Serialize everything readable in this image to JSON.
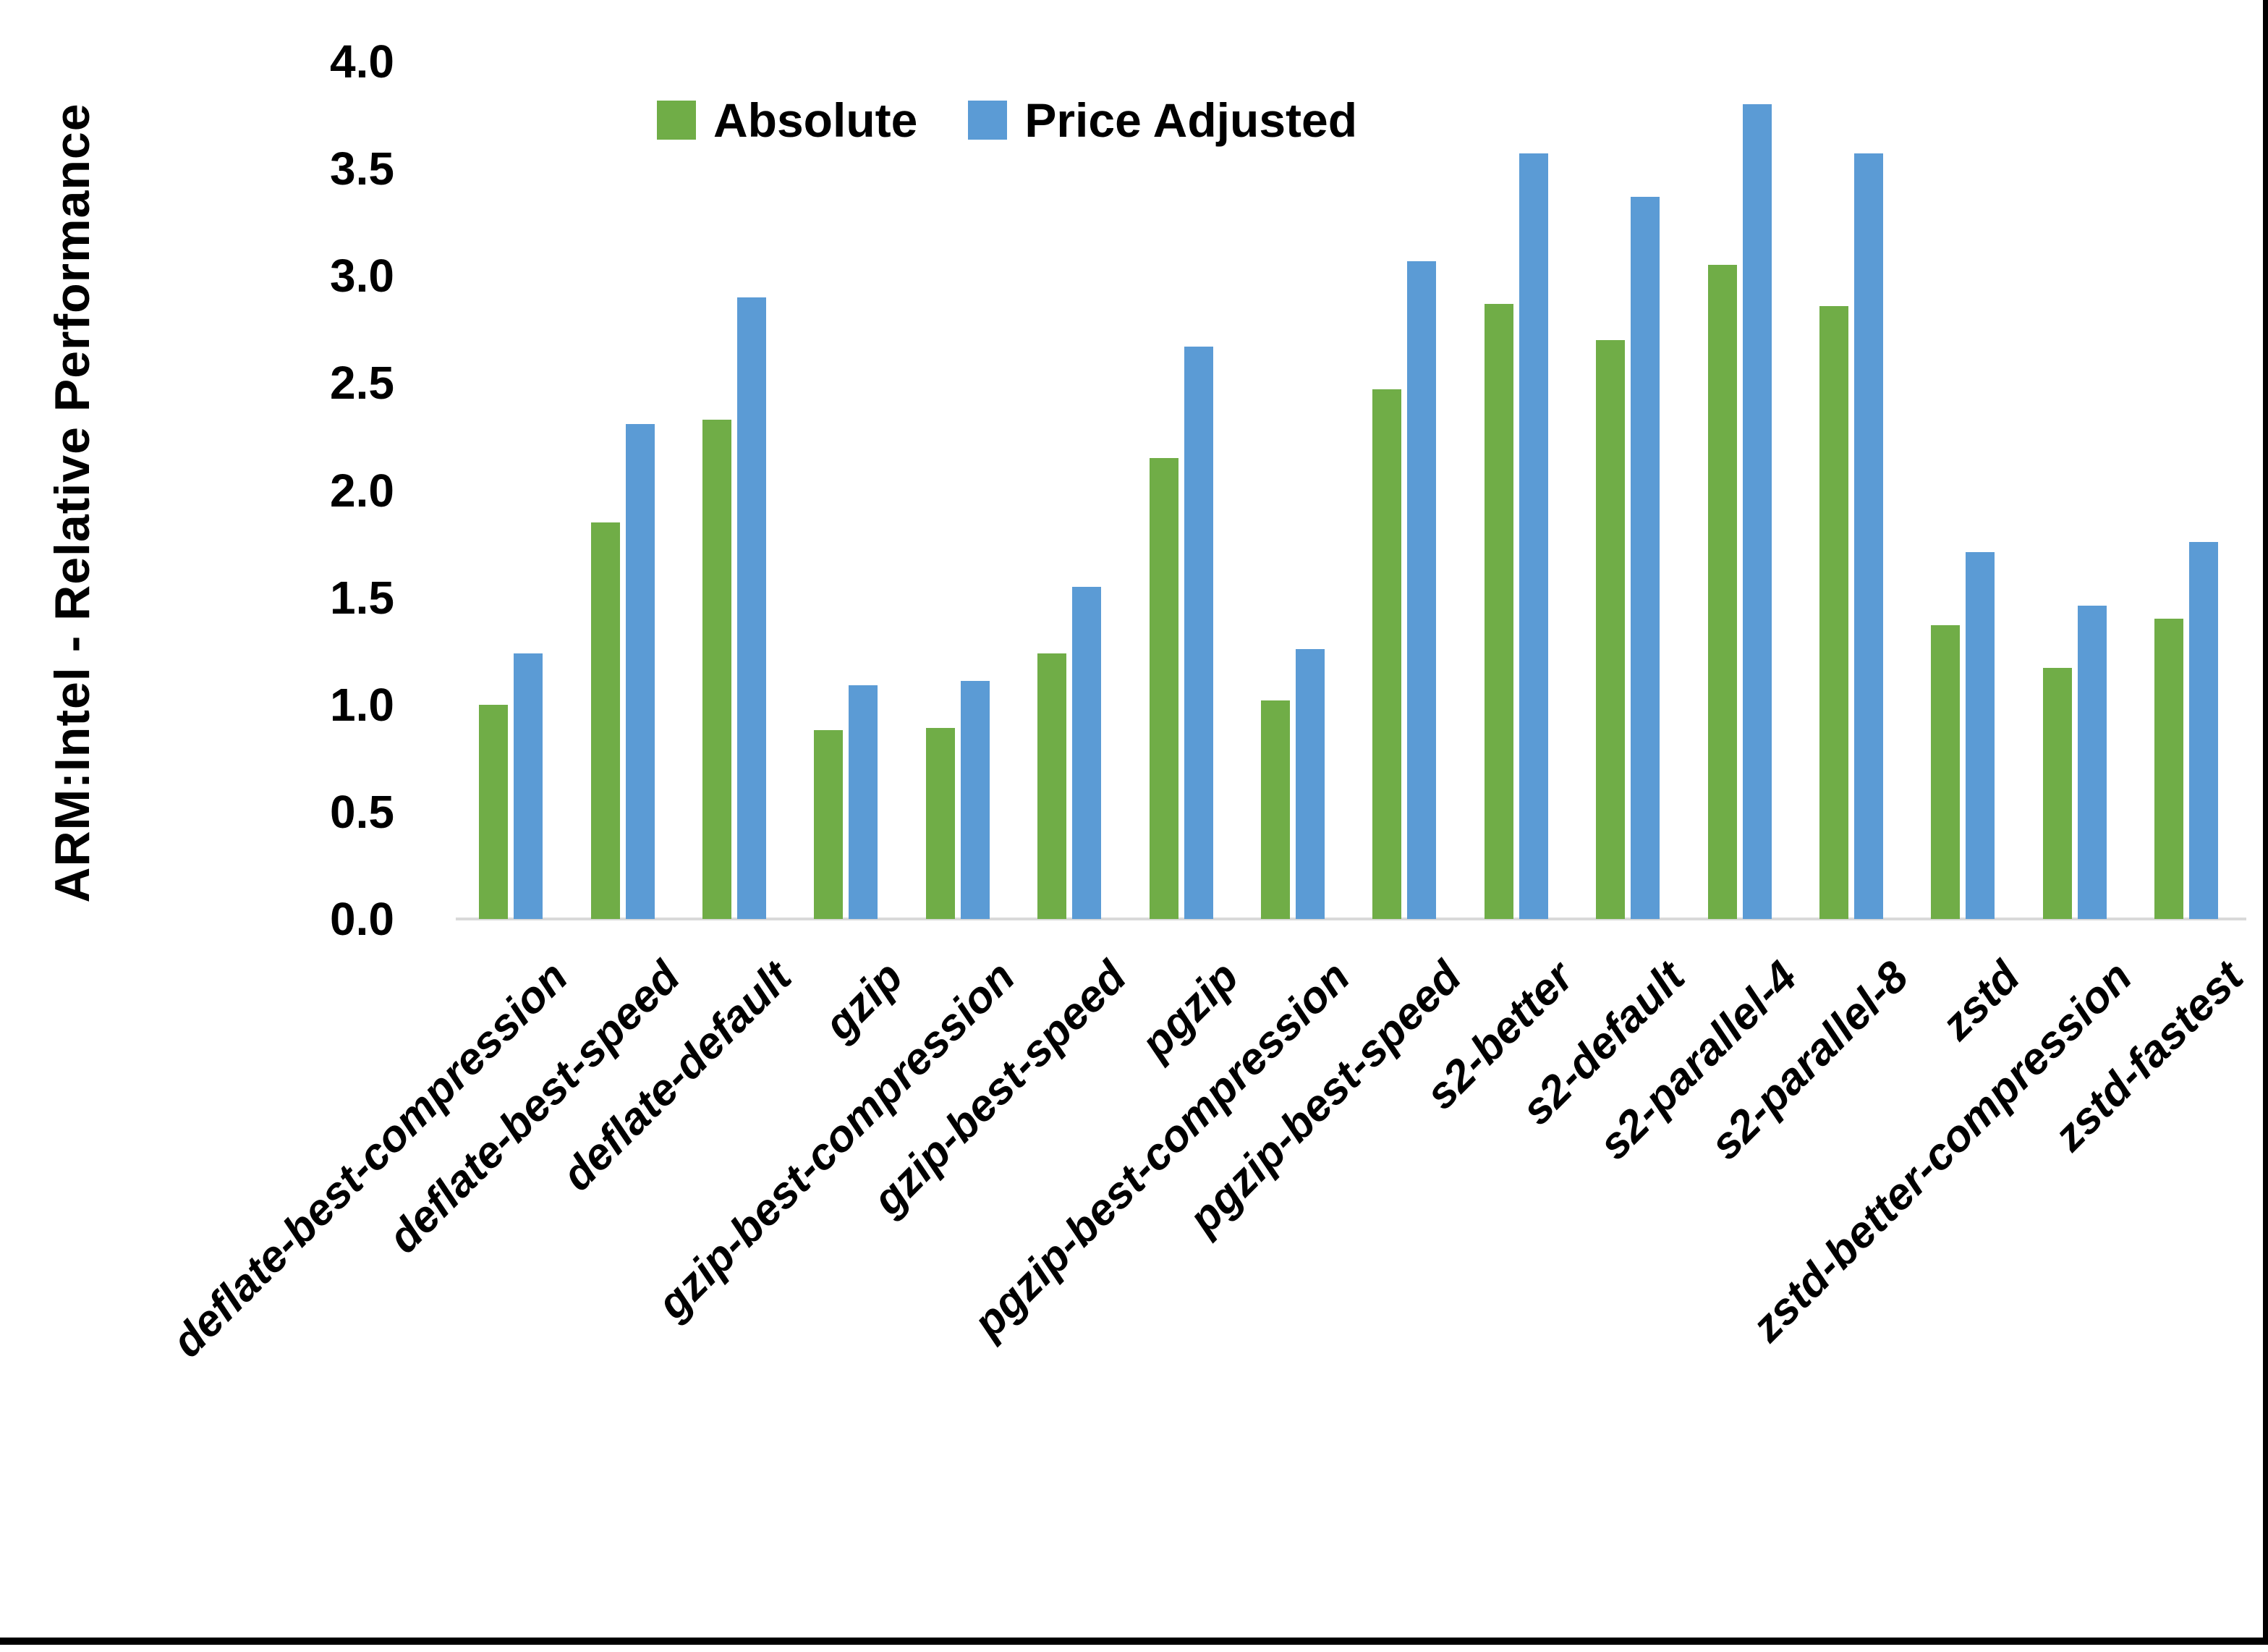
{
  "chart_data": {
    "type": "bar",
    "title": "",
    "ylabel": "ARM:Intel - Relative Performance",
    "xlabel": "",
    "ylim": [
      0,
      4
    ],
    "ytick_step": 0.5,
    "yticks": [
      "4.0",
      "3.5",
      "3.0",
      "2.5",
      "2.0",
      "1.5",
      "1.0",
      "0.5",
      "0.0"
    ],
    "grid": false,
    "legend_position": "top-center",
    "categories": [
      "deflate-best-compression",
      "deflate-best-speed",
      "deflate-default",
      "gzip",
      "gzip-best-compression",
      "gzip-best-speed",
      "pgzip",
      "pgzip-best-compression",
      "pgzip-best-speed",
      "s2-better",
      "s2-default",
      "s2-parallel-4",
      "s2-parallel-8",
      "zstd",
      "zstd-better-compression",
      "zstd-fastest"
    ],
    "series": [
      {
        "name": "Absolute",
        "color": "#70AD47",
        "values": [
          1.0,
          1.85,
          2.33,
          0.88,
          0.89,
          1.24,
          2.15,
          1.02,
          2.47,
          2.87,
          2.7,
          3.05,
          2.86,
          1.37,
          1.17,
          1.4
        ]
      },
      {
        "name": "Price Adjusted",
        "color": "#5B9BD5",
        "values": [
          1.24,
          2.31,
          2.9,
          1.09,
          1.11,
          1.55,
          2.67,
          1.26,
          3.07,
          3.57,
          3.37,
          3.8,
          3.57,
          1.71,
          1.46,
          1.76
        ]
      }
    ]
  },
  "colors": {
    "axis_line": "#D9D9D9",
    "text": "#000000",
    "background": "#FFFFFF",
    "frame_border": "#000000"
  }
}
